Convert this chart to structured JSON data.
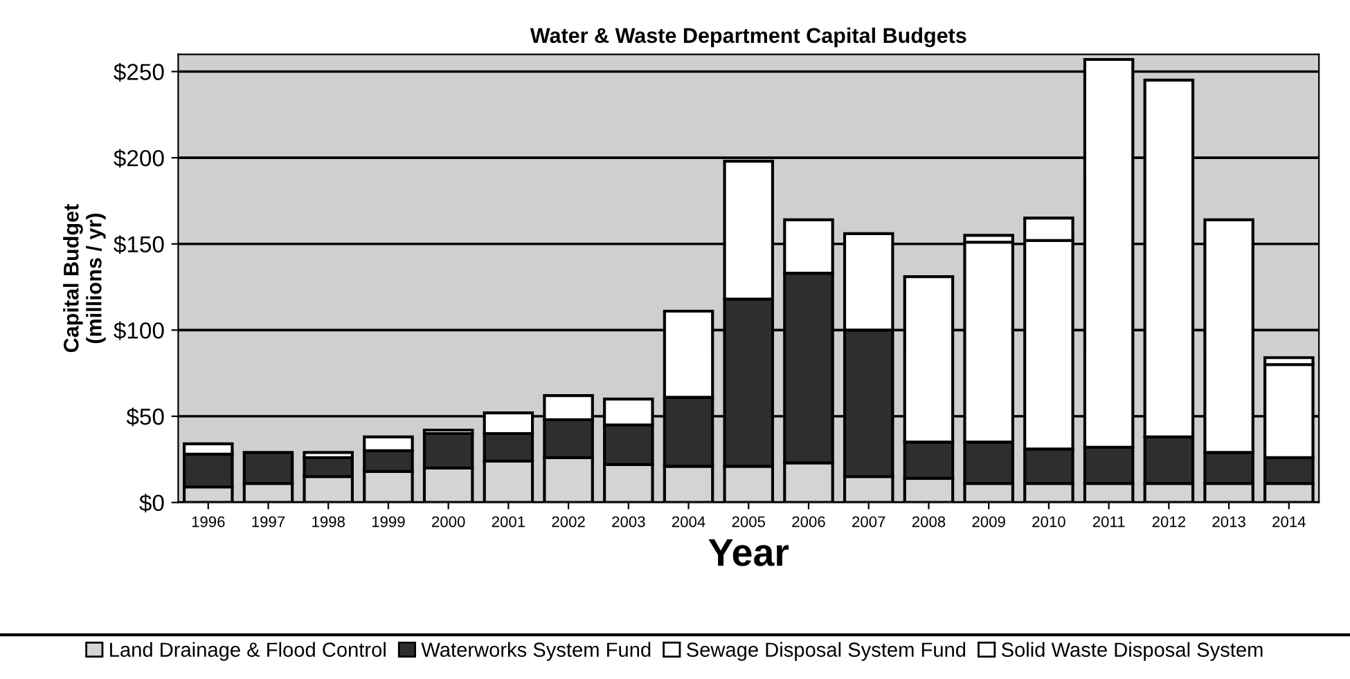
{
  "chart_data": {
    "type": "bar",
    "stacked": true,
    "title": "Water & Waste Department Capital Budgets",
    "xlabel": "Year",
    "ylabel": "Capital Budget\n(millions / yr)",
    "categories": [
      "1996",
      "1997",
      "1998",
      "1999",
      "2000",
      "2001",
      "2002",
      "2003",
      "2004",
      "2005",
      "2006",
      "2007",
      "2008",
      "2009",
      "2010",
      "2011",
      "2012",
      "2013",
      "2014"
    ],
    "series": [
      {
        "name": "Land Drainage & Flood Control",
        "color": "#d4d4d4",
        "values": [
          9,
          11,
          15,
          18,
          20,
          24,
          26,
          22,
          21,
          21,
          23,
          15,
          14,
          11,
          11,
          11,
          11,
          11,
          11
        ]
      },
      {
        "name": "Waterworks System Fund",
        "color": "#2e2e2e",
        "values": [
          19,
          18,
          11,
          12,
          20,
          16,
          22,
          23,
          40,
          97,
          110,
          85,
          21,
          24,
          20,
          21,
          27,
          18,
          15
        ]
      },
      {
        "name": "Sewage Disposal System Fund",
        "color": "#ffffff",
        "values": [
          6,
          null,
          3,
          8,
          2,
          12,
          14,
          15,
          50,
          80,
          31,
          56,
          96,
          116,
          121,
          225,
          207,
          135,
          54
        ]
      },
      {
        "name": "Solid Waste Disposal System",
        "color": "#ffffff",
        "values": [
          null,
          null,
          null,
          null,
          null,
          null,
          null,
          null,
          null,
          null,
          null,
          null,
          null,
          4,
          13,
          null,
          null,
          null,
          4
        ]
      }
    ],
    "ylim": [
      0,
      260
    ],
    "yticks": [
      {
        "value": 0,
        "label": "$0"
      },
      {
        "value": 50,
        "label": "$50"
      },
      {
        "value": 100,
        "label": "$100"
      },
      {
        "value": 150,
        "label": "$150"
      },
      {
        "value": 200,
        "label": "$200"
      },
      {
        "value": 250,
        "label": "$250"
      }
    ],
    "grid": "y",
    "legend": "bottom"
  }
}
